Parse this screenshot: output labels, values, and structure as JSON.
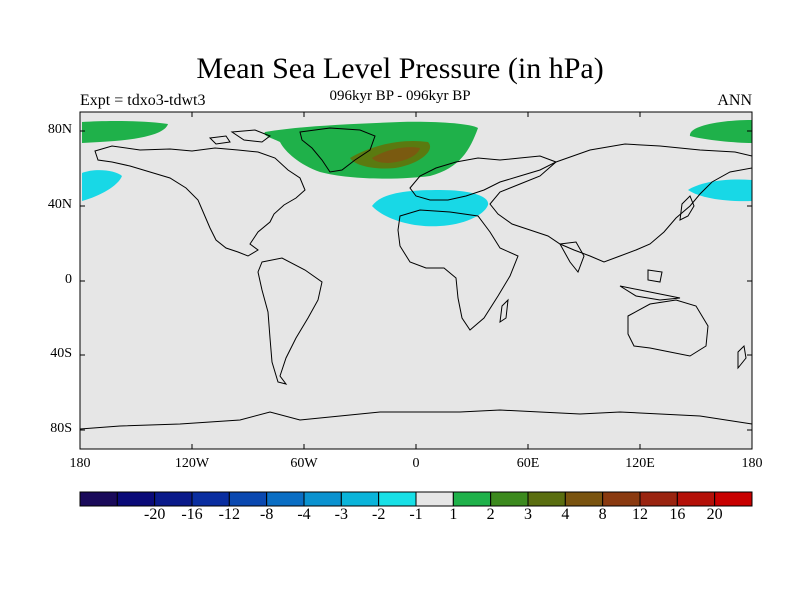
{
  "title": "Mean Sea Level Pressure (in hPa)",
  "subtitle": "096kyr BP - 096kyr BP",
  "experiment": "Expt = tdxo3-tdwt3",
  "season": "ANN",
  "map": {
    "projection": "cylindrical equidistant",
    "lat_ticks": [
      "80N",
      "40N",
      "0",
      "40S",
      "80S"
    ],
    "lon_ticks": [
      "180",
      "120W",
      "60W",
      "0",
      "60E",
      "120E",
      "180"
    ],
    "background_color": "#e6e6e6",
    "field_regions": [
      {
        "name": "arctic-atlantic-positive",
        "category": "1 to 2",
        "color": "#1fb14a"
      },
      {
        "name": "greenland-max",
        "category": "3 to 4",
        "color": "#5a7a10"
      },
      {
        "name": "greenland-core",
        "category": "4 to 8",
        "color": "#7a5a10"
      },
      {
        "name": "mediterranean-negative",
        "category": "-2 to -1",
        "color": "#18d8e6"
      },
      {
        "name": "north-pacific-negative",
        "category": "-2 to -1",
        "color": "#18d8e6"
      }
    ]
  },
  "colorbar": {
    "colors": [
      "#1a0a5a",
      "#0a0a78",
      "#0a1a8a",
      "#0a2ea0",
      "#0a48b0",
      "#0a6ec4",
      "#0a92d0",
      "#0ab4da",
      "#18e0e6",
      "#e6e6e6",
      "#1fb14a",
      "#3c8a1e",
      "#5a6e10",
      "#7a5410",
      "#8a3a10",
      "#9a2410",
      "#b41008",
      "#c80000"
    ],
    "labels": [
      "-20",
      "-16",
      "-12",
      "-8",
      "-4",
      "-3",
      "-2",
      "-1",
      "1",
      "2",
      "3",
      "4",
      "8",
      "12",
      "16",
      "20"
    ]
  }
}
